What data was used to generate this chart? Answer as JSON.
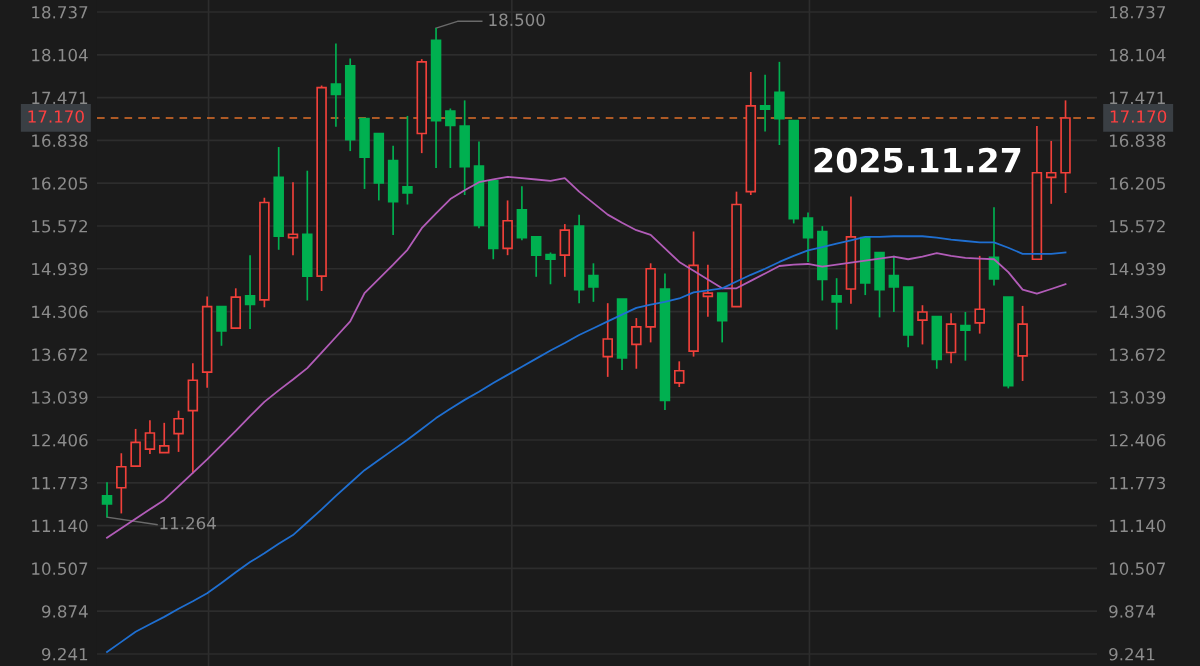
{
  "chart_data": {
    "type": "candlestick",
    "title": "2025.11.27",
    "categories": [
      null,
      null,
      null,
      null,
      null,
      null,
      null,
      null,
      null,
      null,
      null,
      null,
      null,
      null,
      null,
      null,
      null,
      null,
      null,
      null,
      null,
      null,
      null,
      null,
      null,
      null,
      null,
      null,
      null,
      null,
      null,
      null,
      null,
      null,
      null,
      null,
      null,
      null,
      null,
      null,
      null,
      null,
      null,
      null,
      null,
      null,
      null,
      null,
      null,
      null,
      null,
      null,
      null,
      null,
      null,
      null,
      null,
      null,
      null,
      null,
      null,
      null,
      null,
      null,
      null,
      null,
      null,
      null
    ],
    "ohlc": [
      [
        11.58,
        11.78,
        11.264,
        11.46
      ],
      [
        11.7,
        12.21,
        11.32,
        12.01
      ],
      [
        12.02,
        12.57,
        12.02,
        12.37
      ],
      [
        12.27,
        12.7,
        12.2,
        12.51
      ],
      [
        12.22,
        12.66,
        12.22,
        12.32
      ],
      [
        12.5,
        12.84,
        12.23,
        12.72
      ],
      [
        12.84,
        13.54,
        11.91,
        13.29
      ],
      [
        13.41,
        14.53,
        13.18,
        14.38
      ],
      [
        14.38,
        14.38,
        13.8,
        14.02
      ],
      [
        14.06,
        14.65,
        14.06,
        14.52
      ],
      [
        14.54,
        15.14,
        14.05,
        14.41
      ],
      [
        14.48,
        15.99,
        14.37,
        15.92
      ],
      [
        16.29,
        16.74,
        15.22,
        15.42
      ],
      [
        15.4,
        16.22,
        15.14,
        15.45
      ],
      [
        15.45,
        16.39,
        14.47,
        14.83
      ],
      [
        14.83,
        17.65,
        14.61,
        17.62
      ],
      [
        17.67,
        18.27,
        17.04,
        17.52
      ],
      [
        17.94,
        18.05,
        16.68,
        16.85
      ],
      [
        17.16,
        17.16,
        16.12,
        16.59
      ],
      [
        16.94,
        16.94,
        15.95,
        16.21
      ],
      [
        16.54,
        16.76,
        15.44,
        15.93
      ],
      [
        16.15,
        17.2,
        15.89,
        16.06
      ],
      [
        16.94,
        18.04,
        16.65,
        18.0
      ],
      [
        18.32,
        18.5,
        16.43,
        17.13
      ],
      [
        17.27,
        17.31,
        16.43,
        17.06
      ],
      [
        17.05,
        17.43,
        16.03,
        16.45
      ],
      [
        16.46,
        16.82,
        15.54,
        15.58
      ],
      [
        16.24,
        16.24,
        15.08,
        15.24
      ],
      [
        15.24,
        15.95,
        15.14,
        15.65
      ],
      [
        15.81,
        16.16,
        15.36,
        15.4
      ],
      [
        15.41,
        15.41,
        14.82,
        15.14
      ],
      [
        15.15,
        15.18,
        14.71,
        15.08
      ],
      [
        15.14,
        15.6,
        14.82,
        15.51
      ],
      [
        15.57,
        15.74,
        14.43,
        14.63
      ],
      [
        14.84,
        15.02,
        14.45,
        14.67
      ],
      [
        13.64,
        14.43,
        13.34,
        13.9
      ],
      [
        14.49,
        14.49,
        13.44,
        13.62
      ],
      [
        13.82,
        14.21,
        13.46,
        14.08
      ],
      [
        14.08,
        15.02,
        13.85,
        14.94
      ],
      [
        14.64,
        14.87,
        12.85,
        12.99
      ],
      [
        13.25,
        13.57,
        13.19,
        13.43
      ],
      [
        13.72,
        15.49,
        13.64,
        14.99
      ],
      [
        14.53,
        15.0,
        14.23,
        14.58
      ],
      [
        14.58,
        14.58,
        13.85,
        14.17
      ],
      [
        14.38,
        16.08,
        14.38,
        15.89
      ],
      [
        16.08,
        17.85,
        16.03,
        17.35
      ],
      [
        17.35,
        17.81,
        16.97,
        17.3
      ],
      [
        17.55,
        18.0,
        16.77,
        17.16
      ],
      [
        17.13,
        17.13,
        15.61,
        15.68
      ],
      [
        15.69,
        15.77,
        15.04,
        15.4
      ],
      [
        15.49,
        15.57,
        14.47,
        14.78
      ],
      [
        14.54,
        14.8,
        14.04,
        14.45
      ],
      [
        14.64,
        16.01,
        14.42,
        15.41
      ],
      [
        15.4,
        15.4,
        14.55,
        14.73
      ],
      [
        15.18,
        15.18,
        14.22,
        14.63
      ],
      [
        14.84,
        15.13,
        14.3,
        14.67
      ],
      [
        14.67,
        14.67,
        13.78,
        13.96
      ],
      [
        14.18,
        14.4,
        13.82,
        14.3
      ],
      [
        14.23,
        14.23,
        13.46,
        13.6
      ],
      [
        13.7,
        14.28,
        13.54,
        14.12
      ],
      [
        14.1,
        14.3,
        13.58,
        14.03
      ],
      [
        14.14,
        15.13,
        13.98,
        14.34
      ],
      [
        15.11,
        15.85,
        14.69,
        14.79
      ],
      [
        14.52,
        14.52,
        13.17,
        13.21
      ],
      [
        13.65,
        14.39,
        13.28,
        14.12
      ],
      [
        15.08,
        17.05,
        15.08,
        16.36
      ],
      [
        16.29,
        16.83,
        15.9,
        16.36
      ],
      [
        16.36,
        17.43,
        16.06,
        17.17
      ]
    ],
    "colors": [
      "#00b050",
      "#f0403a",
      "#f0403a",
      "#f0403a",
      "#f0403a",
      "#f0403a",
      "#f0403a",
      "#f0403a",
      "#00b050",
      "#f0403a",
      "#00b050",
      "#f0403a",
      "#00b050",
      "#f0403a",
      "#00b050",
      "#f0403a",
      "#00b050",
      "#00b050",
      "#00b050",
      "#00b050",
      "#00b050",
      "#00b050",
      "#f0403a",
      "#00b050",
      "#00b050",
      "#00b050",
      "#00b050",
      "#00b050",
      "#f0403a",
      "#00b050",
      "#00b050",
      "#00b050",
      "#f0403a",
      "#00b050",
      "#00b050",
      "#f0403a",
      "#00b050",
      "#f0403a",
      "#f0403a",
      "#00b050",
      "#f0403a",
      "#f0403a",
      "#f0403a",
      "#00b050",
      "#f0403a",
      "#f0403a",
      "#00b050",
      "#00b050",
      "#00b050",
      "#00b050",
      "#00b050",
      "#00b050",
      "#f0403a",
      "#00b050",
      "#00b050",
      "#00b050",
      "#00b050",
      "#f0403a",
      "#00b050",
      "#f0403a",
      "#00b050",
      "#f0403a",
      "#00b050",
      "#00b050",
      "#f0403a",
      "#f0403a",
      "#f0403a",
      "#f0403a"
    ],
    "series": [
      {
        "type": "line",
        "color": "#b25cb8",
        "values": [
          10.96,
          11.1,
          11.24,
          11.38,
          11.52,
          11.72,
          11.92,
          12.12,
          12.33,
          12.54,
          12.76,
          12.97,
          13.14,
          13.3,
          13.47,
          13.7,
          13.93,
          14.16,
          14.58,
          14.79,
          15.0,
          15.22,
          15.54,
          15.76,
          15.97,
          16.1,
          16.22,
          16.26,
          16.3,
          16.28,
          16.26,
          16.24,
          16.28,
          16.08,
          15.91,
          15.74,
          15.62,
          15.51,
          15.44,
          15.24,
          15.04,
          14.91,
          14.78,
          14.65,
          14.65,
          14.76,
          14.87,
          14.98,
          15.0,
          15.01,
          14.97,
          15.0,
          15.03,
          15.06,
          15.09,
          15.12,
          15.08,
          15.12,
          15.17,
          15.13,
          15.1,
          15.09,
          15.08,
          14.89,
          14.63,
          14.57,
          14.64,
          14.71
        ]
      },
      {
        "type": "line",
        "color": "#1f6fd1",
        "values": [
          9.27,
          9.42,
          9.57,
          9.68,
          9.79,
          9.91,
          10.02,
          10.14,
          10.29,
          10.45,
          10.6,
          10.73,
          10.87,
          11.0,
          11.19,
          11.38,
          11.58,
          11.77,
          11.96,
          12.11,
          12.26,
          12.41,
          12.57,
          12.73,
          12.87,
          13.0,
          13.12,
          13.25,
          13.37,
          13.49,
          13.61,
          13.73,
          13.84,
          13.96,
          14.06,
          14.16,
          14.26,
          14.36,
          14.41,
          14.45,
          14.5,
          14.59,
          14.62,
          14.65,
          14.75,
          14.85,
          14.94,
          15.04,
          15.13,
          15.21,
          15.26,
          15.31,
          15.36,
          15.41,
          15.41,
          15.42,
          15.42,
          15.42,
          15.4,
          15.37,
          15.35,
          15.33,
          15.33,
          15.25,
          15.16,
          15.16,
          15.16,
          15.18
        ]
      }
    ],
    "ylim": [
      9.063,
      18.915
    ],
    "yticks": [
      9.241,
      9.874,
      10.507,
      {
        "value": 11.14,
        "label": "11.140"
      },
      11.773,
      12.406,
      13.039,
      13.672,
      14.306,
      14.939,
      15.572,
      16.205,
      16.838,
      17.471,
      18.104,
      18.737
    ],
    "y2lim": [
      9.063,
      18.915
    ],
    "y2ticks": [
      9.241,
      9.874,
      10.507,
      {
        "value": 11.14,
        "label": "11.140"
      },
      11.773,
      12.406,
      13.039,
      13.672,
      14.306,
      14.939,
      15.572,
      16.205,
      16.838,
      17.471,
      18.104,
      18.737
    ],
    "ref_lines": [
      {
        "axis": "y",
        "value": 17.17,
        "label": "17.170",
        "color": "#e0702a",
        "line_style": "dashed"
      }
    ],
    "annotations": [
      "18.500",
      "11.264"
    ],
    "grid": "y"
  }
}
